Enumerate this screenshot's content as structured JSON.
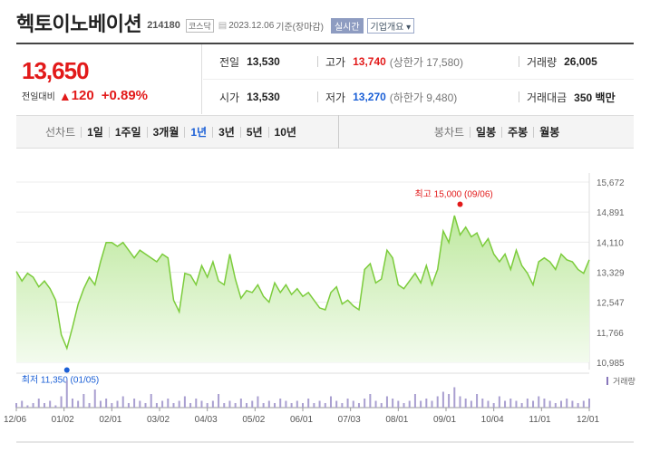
{
  "header": {
    "company": "헥토이노베이션",
    "code": "214180",
    "market": "코스닥",
    "date": "2023.12.06",
    "basis": "기준(장마감)",
    "realtime": "실시간",
    "overview": "기업개요"
  },
  "price": {
    "current": "13,650",
    "change_label": "전일대비",
    "change": "120",
    "change_pct": "+0.89%"
  },
  "stats": {
    "prev_label": "전일",
    "prev": "13,530",
    "high_label": "고가",
    "high": "13,740",
    "upper_label": "(상한가 17,580)",
    "volume_label": "거래량",
    "volume": "26,005",
    "open_label": "시가",
    "open": "13,530",
    "low_label": "저가",
    "low": "13,270",
    "lower_label": "(하한가 9,480)",
    "amount_label": "거래대금",
    "amount": "350 백만"
  },
  "tabs": {
    "line_title": "선차트",
    "periods": [
      "1일",
      "1주일",
      "3개월",
      "1년",
      "3년",
      "5년",
      "10년"
    ],
    "active": "1년",
    "candle_title": "봉차트",
    "candles": [
      "일봉",
      "주봉",
      "월봉"
    ]
  },
  "colors": {
    "up": "#e21a1a",
    "down": "#1a5fd6",
    "line": "#7ccc3c",
    "fill": "#d8f2c3"
  },
  "chart_data": {
    "type": "area",
    "y_ticks": [
      "15,672",
      "14,891",
      "14,110",
      "13,329",
      "12,547",
      "11,766",
      "10,985"
    ],
    "ylim": [
      10985,
      15672
    ],
    "x_ticks": [
      "12/06",
      "01/02",
      "02/01",
      "03/02",
      "04/03",
      "05/02",
      "06/01",
      "07/03",
      "08/01",
      "09/01",
      "10/04",
      "11/01",
      "12/01"
    ],
    "series": [
      {
        "values": [
          13350,
          13100,
          13300,
          13200,
          12950,
          13100,
          12900,
          12600,
          11700,
          11350,
          11900,
          12500,
          12900,
          13200,
          13000,
          13600,
          14100,
          14100,
          14000,
          14100,
          13900,
          13700,
          13900,
          13800,
          13700,
          13600,
          13800,
          13700,
          12600,
          12300,
          13300,
          13250,
          13000,
          13500,
          13200,
          13600,
          13100,
          13000,
          13800,
          13150,
          12650,
          12850,
          12800,
          13000,
          12700,
          12550,
          13050,
          12800,
          13000,
          12750,
          12900,
          12700,
          12800,
          12600,
          12400,
          12350,
          12800,
          12950,
          12500,
          12600,
          12450,
          12350,
          13400,
          13550,
          13050,
          13150,
          13900,
          13700,
          13000,
          12900,
          13100,
          13300,
          13050,
          13500,
          13000,
          13400,
          14400,
          14100,
          14800,
          14300,
          14500,
          14250,
          14350,
          14000,
          14200,
          13800,
          13600,
          13800,
          13400,
          13900,
          13500,
          13300,
          13000,
          13600,
          13700,
          13600,
          13400,
          13800,
          13650,
          13600,
          13400,
          13300,
          13650
        ],
        "markers": [
          {
            "label": "최고 15,000 (09/06)",
            "value": 15000,
            "index": 79
          },
          {
            "label": "최저 11,350 (01/05)",
            "value": 11350,
            "index": 9
          }
        ]
      }
    ],
    "volume_label": "거래량",
    "volumes": [
      2,
      3,
      1,
      2,
      4,
      2,
      3,
      1,
      5,
      12,
      4,
      3,
      6,
      2,
      8,
      3,
      4,
      2,
      3,
      5,
      2,
      4,
      3,
      2,
      6,
      2,
      3,
      4,
      2,
      3,
      5,
      2,
      4,
      3,
      2,
      3,
      6,
      2,
      3,
      2,
      4,
      2,
      3,
      5,
      2,
      3,
      2,
      4,
      3,
      2,
      3,
      2,
      4,
      2,
      3,
      2,
      5,
      3,
      2,
      4,
      3,
      2,
      4,
      6,
      3,
      2,
      5,
      4,
      3,
      2,
      3,
      6,
      3,
      4,
      3,
      5,
      7,
      6,
      9,
      5,
      4,
      3,
      6,
      4,
      3,
      2,
      5,
      3,
      4,
      3,
      2,
      4,
      3,
      5,
      4,
      3,
      2,
      3,
      4,
      3,
      2,
      3,
      4
    ]
  }
}
